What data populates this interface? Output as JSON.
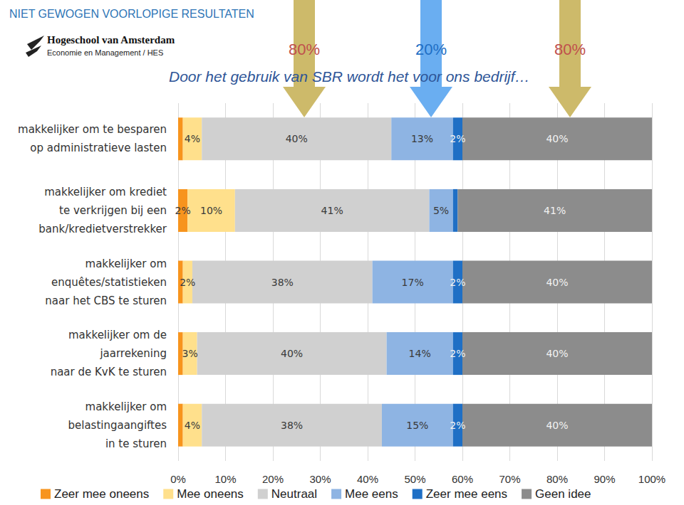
{
  "chart_data": {
    "type": "bar",
    "orientation": "horizontal",
    "stacked": true,
    "data_labels": true,
    "grid": true,
    "legend": "bottom",
    "title": "NIET GEWOGEN VOORLOPIGE RESULTATEN",
    "subtitle": "Door het gebruik van SBR wordt het voor ons bedrijf…",
    "source": [
      "Hogeschool van Amsterdam",
      "Economie en Management / HES"
    ],
    "annotations": [
      {
        "text": "80%"
      },
      {
        "text": "20%"
      },
      {
        "text": "80%"
      }
    ],
    "categories": [
      "makkelijker om te besparen\nop administratieve lasten",
      "makkelijker om krediet\nte verkrijgen bij een\nbank/kredietverstrekker",
      "makkelijker om\nenquêtes/statistieken\nnaar het CBS te sturen",
      "makkelijker om de\njaarrekening\nnaar de KvK te sturen",
      "makkelijker om\nbelastingaangiftes\nin te sturen"
    ],
    "xlim": [
      0,
      100
    ],
    "xticks": [
      {
        "value": 0,
        "label": "0%"
      },
      {
        "value": 10,
        "label": "10%"
      },
      {
        "value": 20,
        "label": "20%"
      },
      {
        "value": 30,
        "label": "30%"
      },
      {
        "value": 40,
        "label": "40%"
      },
      {
        "value": 50,
        "label": "50%"
      },
      {
        "value": 60,
        "label": "60%"
      },
      {
        "value": 70,
        "label": "70%"
      },
      {
        "value": 80,
        "label": "80%"
      },
      {
        "value": 90,
        "label": "90%"
      },
      {
        "value": 100,
        "label": "100%"
      }
    ],
    "series": [
      {
        "name": "Zeer mee oneens",
        "color": "#f7941d",
        "values": [
          1,
          2,
          1,
          1,
          1
        ],
        "value_labels": [
          null,
          "2%",
          null,
          null,
          null
        ]
      },
      {
        "name": "Mee oneens",
        "color": "#ffe08c",
        "values": [
          4,
          10,
          2,
          3,
          4
        ],
        "value_labels": [
          "4%",
          "10%",
          "2%",
          "3%",
          "4%"
        ]
      },
      {
        "name": "Neutraal",
        "color": "#d0d0d0",
        "values": [
          40,
          41,
          38,
          40,
          38
        ],
        "value_labels": [
          "40%",
          "41%",
          "38%",
          "40%",
          "38%"
        ]
      },
      {
        "name": "Mee eens",
        "color": "#8eb4e3",
        "values": [
          13,
          5,
          17,
          14,
          15
        ],
        "value_labels": [
          "13%",
          "5%",
          "17%",
          "14%",
          "15%"
        ]
      },
      {
        "name": "Zeer mee eens",
        "color": "#1f6fc5",
        "values": [
          2,
          1,
          2,
          2,
          2
        ],
        "value_labels": [
          "2%",
          null,
          "2%",
          "2%",
          "2%"
        ]
      },
      {
        "name": "Geen idee",
        "color": "#8c8c8c",
        "values": [
          40,
          41,
          40,
          40,
          40
        ],
        "value_labels": [
          "40%",
          "41%",
          "40%",
          "40%",
          "40%"
        ]
      }
    ]
  }
}
